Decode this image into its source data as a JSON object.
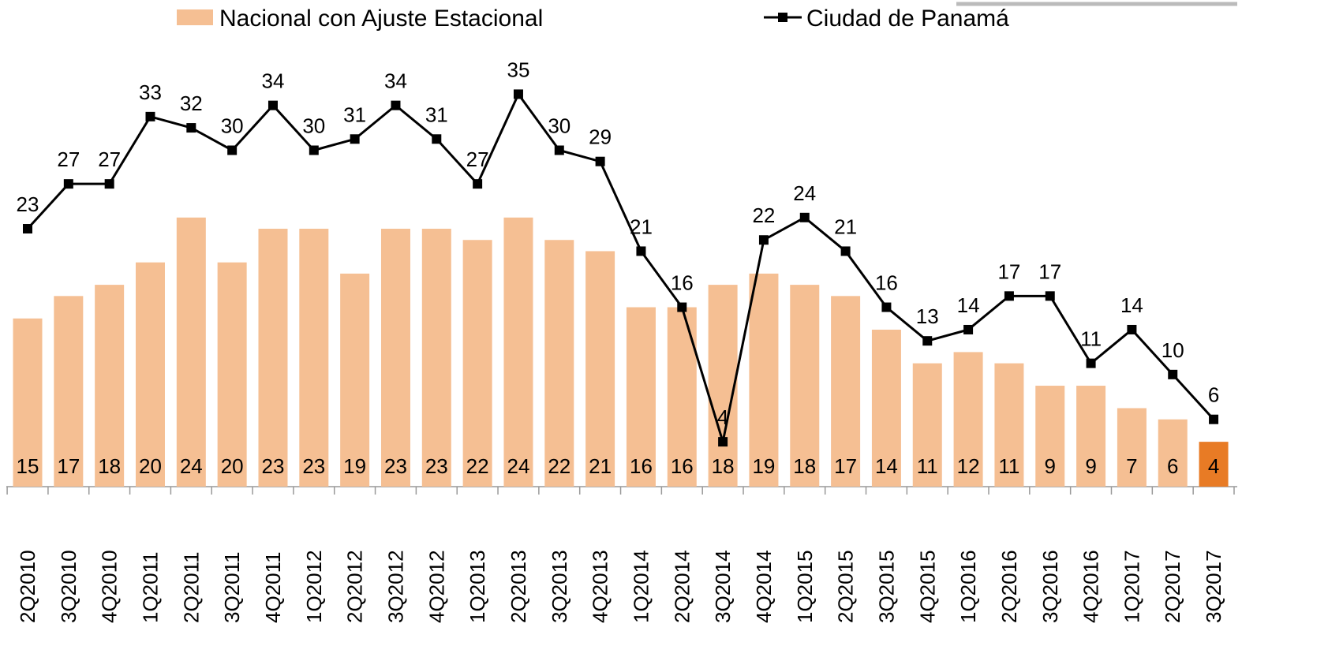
{
  "chart_data": {
    "type": "bar_line",
    "categories": [
      "2Q2010",
      "3Q2010",
      "4Q2010",
      "1Q2011",
      "2Q2011",
      "3Q2011",
      "4Q2011",
      "1Q2012",
      "2Q2012",
      "3Q2012",
      "4Q2012",
      "1Q2013",
      "2Q2013",
      "3Q2013",
      "4Q2013",
      "1Q2014",
      "2Q2014",
      "3Q2014",
      "4Q2014",
      "1Q2015",
      "2Q2015",
      "3Q2015",
      "4Q2015",
      "1Q2016",
      "2Q2016",
      "3Q2016",
      "4Q2016",
      "1Q2017",
      "2Q2017",
      "3Q2017"
    ],
    "series": [
      {
        "name": "Nacional con Ajuste Estacional",
        "type": "bar",
        "color": "#f5bf93",
        "colors": [
          "#f5bf93",
          "#f5bf93",
          "#f5bf93",
          "#f5bf93",
          "#f5bf93",
          "#f5bf93",
          "#f5bf93",
          "#f5bf93",
          "#f5bf93",
          "#f5bf93",
          "#f5bf93",
          "#f5bf93",
          "#f5bf93",
          "#f5bf93",
          "#f5bf93",
          "#f5bf93",
          "#f5bf93",
          "#f5bf93",
          "#f5bf93",
          "#f5bf93",
          "#f5bf93",
          "#f5bf93",
          "#f5bf93",
          "#f5bf93",
          "#f5bf93",
          "#f5bf93",
          "#f5bf93",
          "#f5bf93",
          "#f5bf93",
          "#e87b25"
        ],
        "values": [
          15,
          17,
          18,
          20,
          24,
          20,
          23,
          23,
          19,
          23,
          23,
          22,
          24,
          22,
          21,
          16,
          16,
          18,
          19,
          18,
          17,
          14,
          11,
          12,
          11,
          9,
          9,
          7,
          6,
          4
        ]
      },
      {
        "name": "Ciudad de Panamá",
        "type": "line",
        "color": "#000000",
        "values": [
          23,
          27,
          27,
          33,
          32,
          30,
          34,
          30,
          31,
          34,
          31,
          27,
          35,
          30,
          29,
          21,
          16,
          4,
          22,
          24,
          21,
          16,
          13,
          14,
          17,
          17,
          11,
          14,
          10,
          6
        ]
      }
    ],
    "ylim": [
      0,
      43.4
    ]
  }
}
